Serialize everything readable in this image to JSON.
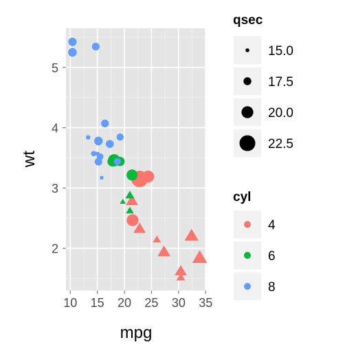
{
  "chart_data": {
    "type": "scatter",
    "title": "",
    "xlabel": "mpg",
    "ylabel": "wt",
    "xlim": [
      9.2,
      35.1
    ],
    "ylim": [
      1.3,
      5.65
    ],
    "xticks": [
      10,
      15,
      20,
      25,
      30,
      35
    ],
    "yticks": [
      2,
      3,
      4,
      5
    ],
    "grid": true,
    "legends": {
      "size": {
        "title": "qsec",
        "entries": [
          {
            "label": "15.0",
            "value": 15.0
          },
          {
            "label": "17.5",
            "value": 17.5
          },
          {
            "label": "20.0",
            "value": 20.0
          },
          {
            "label": "22.5",
            "value": 22.5
          }
        ]
      },
      "color": {
        "title": "cyl",
        "entries": [
          {
            "label": "4",
            "color": "#F8766D"
          },
          {
            "label": "6",
            "color": "#00BA38"
          },
          {
            "label": "8",
            "color": "#619CFF"
          }
        ]
      }
    },
    "series": [
      {
        "name": "4",
        "color": "#F8766D",
        "points": [
          {
            "x": 22.8,
            "y": 2.32,
            "qsec": 18.61,
            "am": 1
          },
          {
            "x": 24.4,
            "y": 3.19,
            "qsec": 20.0,
            "am": 0
          },
          {
            "x": 22.8,
            "y": 3.15,
            "qsec": 22.9,
            "am": 0
          },
          {
            "x": 32.4,
            "y": 2.2,
            "qsec": 19.47,
            "am": 1
          },
          {
            "x": 30.4,
            "y": 1.615,
            "qsec": 18.52,
            "am": 1
          },
          {
            "x": 33.9,
            "y": 1.835,
            "qsec": 19.9,
            "am": 1
          },
          {
            "x": 21.5,
            "y": 2.465,
            "qsec": 20.01,
            "am": 0
          },
          {
            "x": 27.3,
            "y": 1.935,
            "qsec": 18.9,
            "am": 1
          },
          {
            "x": 26.0,
            "y": 2.14,
            "qsec": 16.7,
            "am": 1
          },
          {
            "x": 30.4,
            "y": 1.513,
            "qsec": 16.9,
            "am": 1
          },
          {
            "x": 21.4,
            "y": 2.78,
            "qsec": 18.6,
            "am": 1
          }
        ]
      },
      {
        "name": "6",
        "color": "#00BA38",
        "points": [
          {
            "x": 21.0,
            "y": 2.62,
            "qsec": 16.46,
            "am": 1
          },
          {
            "x": 21.0,
            "y": 2.875,
            "qsec": 17.02,
            "am": 1
          },
          {
            "x": 21.4,
            "y": 3.215,
            "qsec": 19.44,
            "am": 0
          },
          {
            "x": 18.1,
            "y": 3.46,
            "qsec": 20.22,
            "am": 0
          },
          {
            "x": 19.2,
            "y": 3.44,
            "qsec": 18.3,
            "am": 0
          },
          {
            "x": 17.8,
            "y": 3.44,
            "qsec": 18.9,
            "am": 0
          },
          {
            "x": 19.7,
            "y": 2.77,
            "qsec": 15.5,
            "am": 1
          }
        ]
      },
      {
        "name": "8",
        "color": "#619CFF",
        "points": [
          {
            "x": 18.7,
            "y": 3.44,
            "qsec": 17.02,
            "am": 0
          },
          {
            "x": 14.3,
            "y": 3.57,
            "qsec": 15.84,
            "am": 0
          },
          {
            "x": 16.4,
            "y": 4.07,
            "qsec": 17.4,
            "am": 0
          },
          {
            "x": 17.3,
            "y": 3.73,
            "qsec": 17.6,
            "am": 0
          },
          {
            "x": 15.2,
            "y": 3.78,
            "qsec": 18.0,
            "am": 0
          },
          {
            "x": 10.4,
            "y": 5.25,
            "qsec": 17.98,
            "am": 0
          },
          {
            "x": 10.4,
            "y": 5.424,
            "qsec": 17.82,
            "am": 0
          },
          {
            "x": 14.7,
            "y": 5.345,
            "qsec": 17.42,
            "am": 0
          },
          {
            "x": 15.5,
            "y": 3.52,
            "qsec": 16.87,
            "am": 0
          },
          {
            "x": 15.2,
            "y": 3.435,
            "qsec": 17.3,
            "am": 0
          },
          {
            "x": 13.3,
            "y": 3.84,
            "qsec": 15.41,
            "am": 0
          },
          {
            "x": 19.2,
            "y": 3.845,
            "qsec": 17.05,
            "am": 0
          },
          {
            "x": 15.8,
            "y": 3.17,
            "qsec": 14.5,
            "am": 1
          },
          {
            "x": 15.0,
            "y": 3.57,
            "qsec": 14.6,
            "am": 1
          }
        ]
      }
    ]
  }
}
